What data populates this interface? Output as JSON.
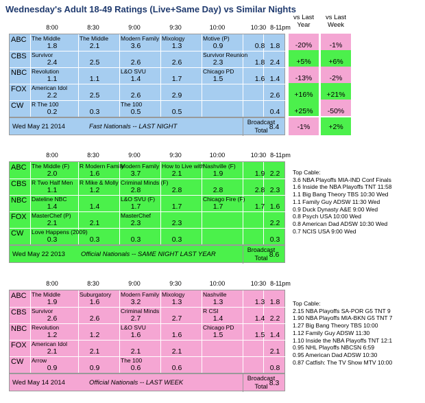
{
  "title": "Wednesday's Adult 18-49 Ratings (Live+Same Day) vs Similar Nights",
  "col_headers": {
    "vs_last_year": "vs Last Year",
    "vs_last_week": "vs Last Week"
  },
  "times": [
    "8:00",
    "8:30",
    "9:00",
    "9:30",
    "10:00",
    "10:30",
    "8-11pm"
  ],
  "colors": {
    "blue": "#a6cdf0",
    "green": "#4bf14b",
    "pink": "#f5a6d3",
    "pos": "#4cf04c",
    "neg": "#f4a6d3",
    "border": "#000000"
  },
  "blocks": [
    {
      "color": "blue",
      "footer_date": "Wed May 21 2014",
      "footer_label": "Fast Nationals -- LAST NIGHT",
      "broadcast_label": "Broadcast",
      "total_label": "Total",
      "broadcast_total": "8.4",
      "rows": [
        {
          "net": "ABC",
          "progs": [
            "The Middle",
            "The Middle",
            "Modern Family",
            "Mixology",
            "Motive (P)",
            ""
          ],
          "vals": [
            "1.8",
            "2.1",
            "3.6",
            "1.3",
            "0.9",
            "0.8"
          ],
          "total": "1.8",
          "vs_year": "-20%",
          "vs_week": "-1%"
        },
        {
          "net": "CBS",
          "progs": [
            "Survivor",
            "",
            "",
            "",
            "Survivor Reunion",
            ""
          ],
          "vals": [
            "2.4",
            "2.5",
            "2.6",
            "2.6",
            "2.3",
            "1.8"
          ],
          "total": "2.4",
          "vs_year": "+5%",
          "vs_week": "+6%"
        },
        {
          "net": "NBC",
          "progs": [
            "Revolution",
            "",
            "L&O SVU",
            "",
            "Chicago PD",
            ""
          ],
          "vals": [
            "1.1",
            "1.1",
            "1.4",
            "1.7",
            "1.5",
            "1.6"
          ],
          "total": "1.4",
          "vs_year": "-13%",
          "vs_week": "-2%"
        },
        {
          "net": "FOX",
          "progs": [
            "American Idol",
            "",
            "",
            "",
            "",
            ""
          ],
          "vals": [
            "2.2",
            "2.5",
            "2.6",
            "2.9",
            "",
            ""
          ],
          "total": "2.6",
          "vs_year": "+16%",
          "vs_week": "+21%"
        },
        {
          "net": "CW",
          "progs": [
            "R The 100",
            "",
            "The 100",
            "",
            "",
            ""
          ],
          "vals": [
            "0.2",
            "0.3",
            "0.5",
            "0.5",
            "",
            ""
          ],
          "total": "0.4",
          "vs_year": "+25%",
          "vs_week": "-50%"
        }
      ],
      "total_vs_year": "-1%",
      "total_vs_week": "+2%"
    },
    {
      "color": "green",
      "footer_date": "Wed May 22 2013",
      "footer_label": "Official Nationals -- SAME NIGHT LAST YEAR",
      "broadcast_label": "Broadcast",
      "total_label": "Total",
      "broadcast_total": "8.6",
      "rows": [
        {
          "net": "ABC",
          "progs": [
            "The Middle (F)",
            "R Modern Family",
            "Modern Family",
            "How to Live with",
            "Nashville (F)",
            ""
          ],
          "vals": [
            "2.0",
            "1.6",
            "3.7",
            "2.1",
            "1.9",
            "1.9"
          ],
          "total": "2.2"
        },
        {
          "net": "CBS",
          "progs": [
            "R Two Half Men",
            "R Mike & Molly",
            "Criminal Minds (F)",
            "",
            "",
            ""
          ],
          "vals": [
            "1.1",
            "1.2",
            "2.8",
            "2.8",
            "2.8",
            "2.8"
          ],
          "total": "2.3"
        },
        {
          "net": "NBC",
          "progs": [
            "Dateline NBC",
            "",
            "L&O SVU (F)",
            "",
            "Chicago Fire (F)",
            ""
          ],
          "vals": [
            "1.4",
            "1.4",
            "1.7",
            "1.7",
            "1.7",
            "1.7"
          ],
          "total": "1.6"
        },
        {
          "net": "FOX",
          "progs": [
            "MasterChef (P)",
            "",
            "MasterChef",
            "",
            "",
            ""
          ],
          "vals": [
            "2.1",
            "2.1",
            "2.3",
            "2.3",
            "",
            ""
          ],
          "total": "2.2"
        },
        {
          "net": "CW",
          "progs": [
            "Love Happens (2009)",
            "",
            "",
            "",
            "",
            ""
          ],
          "vals": [
            "0.3",
            "0.3",
            "0.3",
            "0.3",
            "",
            ""
          ],
          "total": "0.3"
        }
      ]
    },
    {
      "color": "pink",
      "footer_date": "Wed May 14 2014",
      "footer_label": "Official Nationals -- LAST WEEK",
      "broadcast_label": "Broadcast",
      "total_label": "Total",
      "broadcast_total": "8.3",
      "rows": [
        {
          "net": "ABC",
          "progs": [
            "The Middle",
            "Suburgatory",
            "Modern Family",
            "Mixology",
            "Nashville",
            ""
          ],
          "vals": [
            "1.9",
            "1.6",
            "3.2",
            "1.3",
            "1.3",
            "1.3"
          ],
          "total": "1.8"
        },
        {
          "net": "CBS",
          "progs": [
            "Survivor",
            "",
            "Criminal Minds",
            "",
            "R CSI",
            ""
          ],
          "vals": [
            "2.6",
            "2.6",
            "2.7",
            "2.7",
            "1.4",
            "1.4"
          ],
          "total": "2.2"
        },
        {
          "net": "NBC",
          "progs": [
            "Revolution",
            "",
            "L&O SVU",
            "",
            "Chicago PD",
            ""
          ],
          "vals": [
            "1.2",
            "1.2",
            "1.6",
            "1.6",
            "1.5",
            "1.5"
          ],
          "total": "1.4"
        },
        {
          "net": "FOX",
          "progs": [
            "American Idol",
            "",
            "",
            "",
            "",
            ""
          ],
          "vals": [
            "2.1",
            "2.1",
            "2.1",
            "2.1",
            "",
            ""
          ],
          "total": "2.1"
        },
        {
          "net": "CW",
          "progs": [
            "Arrow",
            "",
            "The 100",
            "",
            "",
            ""
          ],
          "vals": [
            "0.9",
            "0.9",
            "0.6",
            "0.6",
            "",
            ""
          ],
          "total": "0.8"
        }
      ]
    }
  ],
  "top_cable_1": {
    "heading": "Top Cable:",
    "items": [
      "3.6 NBA Playoffs MIA-IND Conf Finals",
      "1.6 Inside the NBA Playoffs TNT 11:58",
      "1.1 Big Bang Theory TBS 10:30 Wed",
      "1.1 Family Guy ADSW 11:30 Wed",
      "0.9 Duck Dynasty A&E 9:00 Wed",
      "0.8 Psych USA 10:00 Wed",
      "0.8 American Dad ADSW 10:30 Wed",
      "0.7 NCIS USA 9:00 Wed"
    ]
  },
  "top_cable_2": {
    "heading": "Top Cable:",
    "items": [
      "2.15 NBA Playoffs  SA-POR G5 TNT 9",
      "1.90 NBA Playoffs MIA-BKN G5 TNT 7",
      "1.27 Big Bang Theory TBS 10:00",
      "1.12 Family Guy ADSW 11:30",
      "1.10 Inside the NBA Playoffs TNT 12:1",
      "0.95 NHL Playoffs NBCSN 6:59",
      "0.95 American Dad ADSW 10:30",
      "0.87 Catfish: The TV Show MTV 10:00"
    ]
  }
}
